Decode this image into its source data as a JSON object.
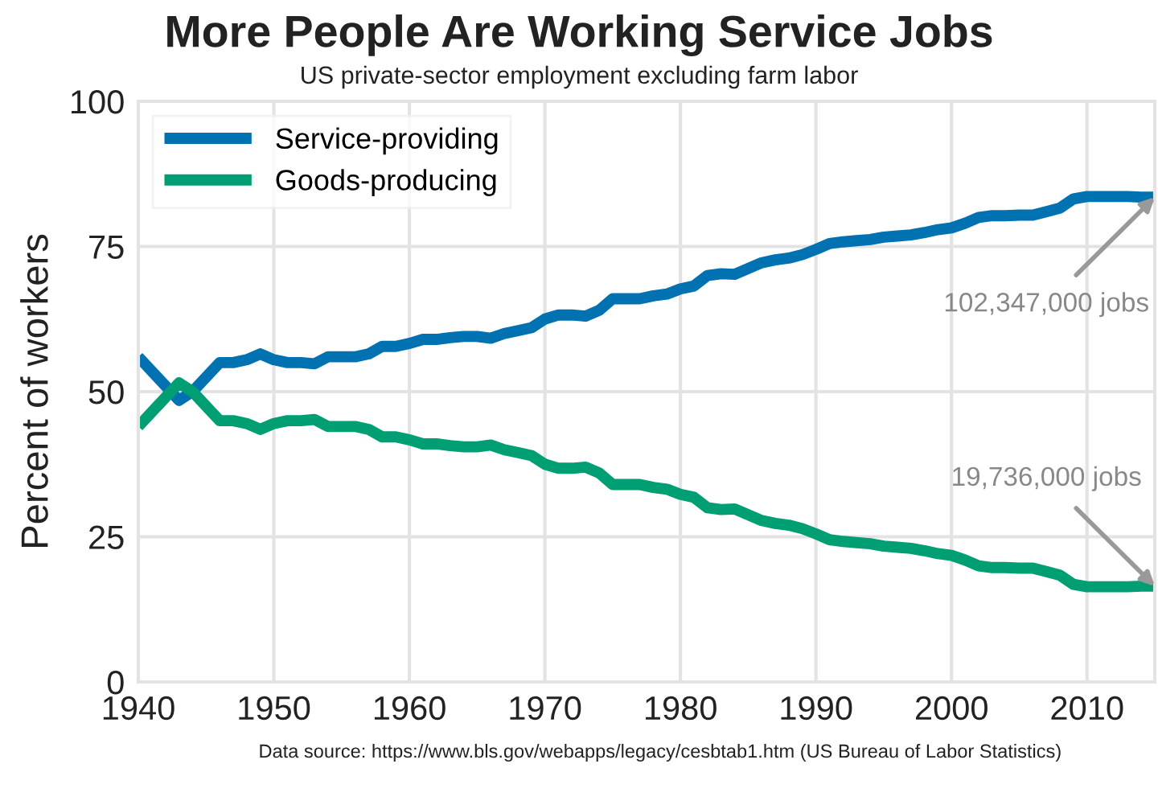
{
  "chart_data": {
    "type": "line",
    "title": "More People Are Working Service Jobs",
    "subtitle": "US private-sector employment excluding farm labor",
    "ylabel": "Percent of workers",
    "x": [
      1940,
      1941,
      1942,
      1943,
      1944,
      1945,
      1946,
      1947,
      1948,
      1949,
      1950,
      1951,
      1952,
      1953,
      1954,
      1955,
      1956,
      1957,
      1958,
      1959,
      1960,
      1961,
      1962,
      1963,
      1964,
      1965,
      1966,
      1967,
      1968,
      1969,
      1970,
      1971,
      1972,
      1973,
      1974,
      1975,
      1976,
      1977,
      1978,
      1979,
      1980,
      1981,
      1982,
      1983,
      1984,
      1985,
      1986,
      1987,
      1988,
      1989,
      1990,
      1991,
      1992,
      1993,
      1994,
      1995,
      1996,
      1997,
      1998,
      1999,
      2000,
      2001,
      2002,
      2003,
      2004,
      2005,
      2006,
      2007,
      2008,
      2009,
      2010,
      2011,
      2012,
      2013,
      2014,
      2015
    ],
    "series": [
      {
        "name": "Service-providing",
        "color": "#0072b2",
        "values": [
          56,
          53.5,
          51,
          48.5,
          50,
          52.5,
          55,
          55,
          55.5,
          56.5,
          55.5,
          55,
          55,
          54.8,
          56,
          56,
          56,
          56.5,
          57.8,
          57.8,
          58.3,
          59,
          59,
          59.3,
          59.5,
          59.5,
          59.2,
          60,
          60.5,
          61,
          62.5,
          63.2,
          63.2,
          63,
          64,
          66,
          66,
          66,
          66.5,
          66.8,
          67.7,
          68.2,
          70,
          70.3,
          70.2,
          71.2,
          72.2,
          72.7,
          73,
          73.6,
          74.5,
          75.5,
          75.8,
          76,
          76.2,
          76.6,
          76.8,
          77,
          77.4,
          77.9,
          78.2,
          79,
          80,
          80.3,
          80.3,
          80.4,
          80.4,
          81,
          81.6,
          83.2,
          83.6,
          83.6,
          83.6,
          83.6,
          83.5,
          83.5
        ]
      },
      {
        "name": "Goods-producing",
        "color": "#009e73",
        "values": [
          44,
          46.5,
          49,
          51.5,
          50,
          47.5,
          45,
          45,
          44.5,
          43.5,
          44.5,
          45,
          45,
          45.2,
          44,
          44,
          44,
          43.5,
          42.2,
          42.2,
          41.7,
          41,
          41,
          40.7,
          40.5,
          40.5,
          40.8,
          40,
          39.5,
          39,
          37.5,
          36.8,
          36.8,
          37,
          36,
          34,
          34,
          34,
          33.5,
          33.2,
          32.3,
          31.8,
          30,
          29.7,
          29.8,
          28.8,
          27.8,
          27.3,
          27,
          26.4,
          25.5,
          24.5,
          24.2,
          24,
          23.8,
          23.4,
          23.2,
          23,
          22.6,
          22.1,
          21.8,
          21,
          20,
          19.7,
          19.7,
          19.6,
          19.6,
          19,
          18.4,
          16.8,
          16.4,
          16.4,
          16.4,
          16.4,
          16.5,
          16.5
        ]
      }
    ],
    "xlim": [
      1940,
      2015
    ],
    "xticks": [
      1940,
      1950,
      1960,
      1970,
      1980,
      1990,
      2000,
      2010
    ],
    "ylim": [
      0,
      100
    ],
    "yticks": [
      0,
      25,
      50,
      75,
      100
    ],
    "grid": true,
    "legend": "top left",
    "annotations": [
      {
        "text": "102,347,000 jobs",
        "x": 2015,
        "y": 83.5
      },
      {
        "text": "19,736,000 jobs",
        "x": 2015,
        "y": 16.5
      },
      "Data source: https://www.bls.gov/webapps/legacy/cesbtab1.htm (US Bureau of Labor Statistics)"
    ]
  }
}
